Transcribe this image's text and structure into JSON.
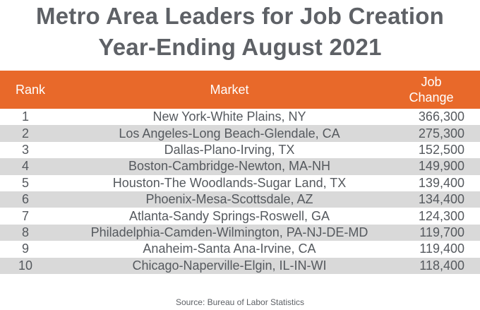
{
  "title": {
    "line1": "Metro Area Leaders for Job Creation",
    "line2": "Year-Ending August 2021"
  },
  "colors": {
    "header_bg": "#e8692a",
    "header_text": "#ffffff",
    "stripe": "#d9d9d9",
    "text": "#55595e"
  },
  "chart_data": {
    "type": "table",
    "title": "Metro Area Leaders for Job Creation Year-Ending August 2021",
    "columns": [
      "Rank",
      "Market",
      "Job Change"
    ],
    "header": {
      "rank": "Rank",
      "market": "Market",
      "job_line1": "Job",
      "job_line2": "Change"
    },
    "rows": [
      {
        "rank": "1",
        "market": "New York-White Plains, NY",
        "job_change": "366,300"
      },
      {
        "rank": "2",
        "market": "Los Angeles-Long Beach-Glendale, CA",
        "job_change": "275,300"
      },
      {
        "rank": "3",
        "market": "Dallas-Plano-Irving, TX",
        "job_change": "152,500"
      },
      {
        "rank": "4",
        "market": "Boston-Cambridge-Newton, MA-NH",
        "job_change": "149,900"
      },
      {
        "rank": "5",
        "market": "Houston-The Woodlands-Sugar Land, TX",
        "job_change": "139,400"
      },
      {
        "rank": "6",
        "market": "Phoenix-Mesa-Scottsdale, AZ",
        "job_change": "134,400"
      },
      {
        "rank": "7",
        "market": "Atlanta-Sandy Springs-Roswell, GA",
        "job_change": "124,300"
      },
      {
        "rank": "8",
        "market": "Philadelphia-Camden-Wilmington, PA-NJ-DE-MD",
        "job_change": "119,700"
      },
      {
        "rank": "9",
        "market": "Anaheim-Santa Ana-Irvine, CA",
        "job_change": "119,400"
      },
      {
        "rank": "10",
        "market": "Chicago-Naperville-Elgin, IL-IN-WI",
        "job_change": "118,400"
      }
    ],
    "source": "Source: Bureau of Labor Statistics"
  }
}
